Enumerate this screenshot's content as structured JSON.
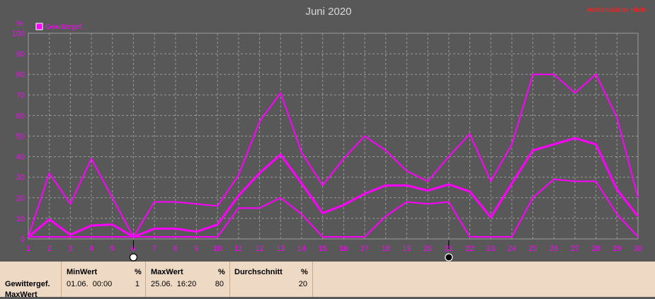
{
  "header": {
    "title": "Juni 2020",
    "brand": "Wetterstation Hiele"
  },
  "chart_data": {
    "type": "line",
    "title": "Juni 2020",
    "ylabel": "%",
    "x": [
      1,
      2,
      3,
      4,
      5,
      6,
      7,
      8,
      9,
      10,
      11,
      12,
      13,
      14,
      15,
      16,
      17,
      18,
      19,
      20,
      21,
      22,
      23,
      24,
      25,
      26,
      27,
      28,
      29,
      30
    ],
    "xlim": [
      1,
      30
    ],
    "ylim": [
      0,
      100
    ],
    "yticks": [
      0,
      10,
      20,
      30,
      40,
      50,
      60,
      70,
      80,
      90,
      100
    ],
    "grid": true,
    "legend": "top-left",
    "legend_entries": [
      "Gewittergef."
    ],
    "series": [
      {
        "name": "Gewittergef.",
        "role": "max",
        "values": [
          1,
          32,
          17,
          39,
          20,
          1,
          18,
          18,
          17,
          16,
          31,
          57,
          71,
          42,
          26,
          39,
          50,
          43,
          33,
          28,
          40,
          51,
          28,
          46,
          80,
          80,
          71,
          80,
          59,
          20
        ]
      },
      {
        "name": "Gewittergef.",
        "role": "avg",
        "values": [
          1,
          9.5,
          2,
          6.5,
          7,
          1,
          5,
          5,
          3.5,
          7,
          21,
          32,
          41,
          27,
          12.5,
          16.5,
          22,
          26,
          26,
          23.5,
          26.5,
          23,
          10.5,
          27,
          43,
          46,
          49,
          46,
          24,
          11
        ]
      },
      {
        "name": "Gewittergef.",
        "role": "min",
        "values": [
          1,
          1,
          1,
          1,
          1,
          1,
          1,
          1,
          1,
          1,
          15,
          15,
          20,
          12,
          1,
          1,
          1,
          11,
          18,
          17,
          18,
          1,
          1,
          1,
          20,
          29,
          28,
          28,
          12,
          1
        ]
      }
    ],
    "moon_phases": [
      {
        "day": 6,
        "phase": "full-moon-icon"
      },
      {
        "day": 21,
        "phase": "new-moon-icon"
      }
    ]
  },
  "stats": {
    "row_label": "Gewittergef.",
    "row_label_2": "MaxWert",
    "columns": [
      {
        "header": "MinWert",
        "unit": "%",
        "date": "01.06.  00:00",
        "value": "1"
      },
      {
        "header": "MaxWert",
        "unit": "%",
        "date": "25.06.  16:20",
        "value": "80"
      },
      {
        "header": "Durchschnitt",
        "unit": "%",
        "date": "",
        "value": "20"
      }
    ]
  },
  "colors": {
    "background": "#585858",
    "grid": "#9a9a9a",
    "series": "#ff00ff",
    "title": "#d8d8d8",
    "brand": "#ff2020",
    "panel": "#eed9c4"
  }
}
